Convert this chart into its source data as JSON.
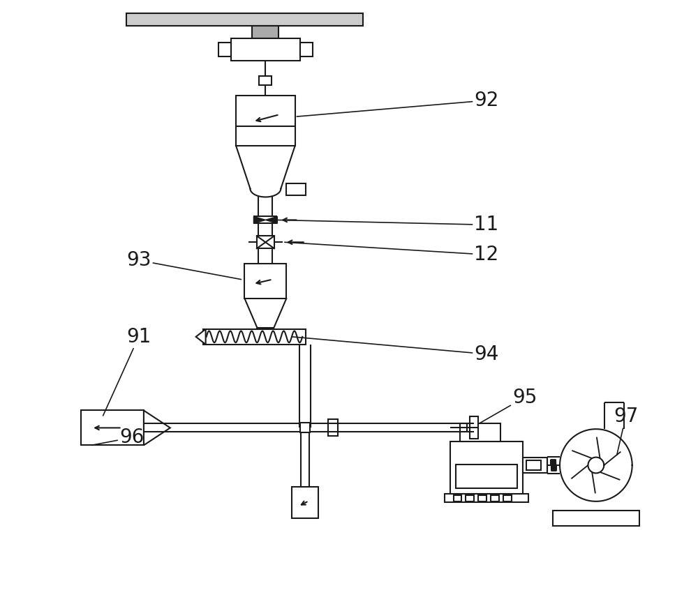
{
  "bg_color": "#ffffff",
  "line_color": "#1a1a1a",
  "line_width": 1.5,
  "fig_width": 10.0,
  "fig_height": 8.66,
  "label_fontsize": 20
}
